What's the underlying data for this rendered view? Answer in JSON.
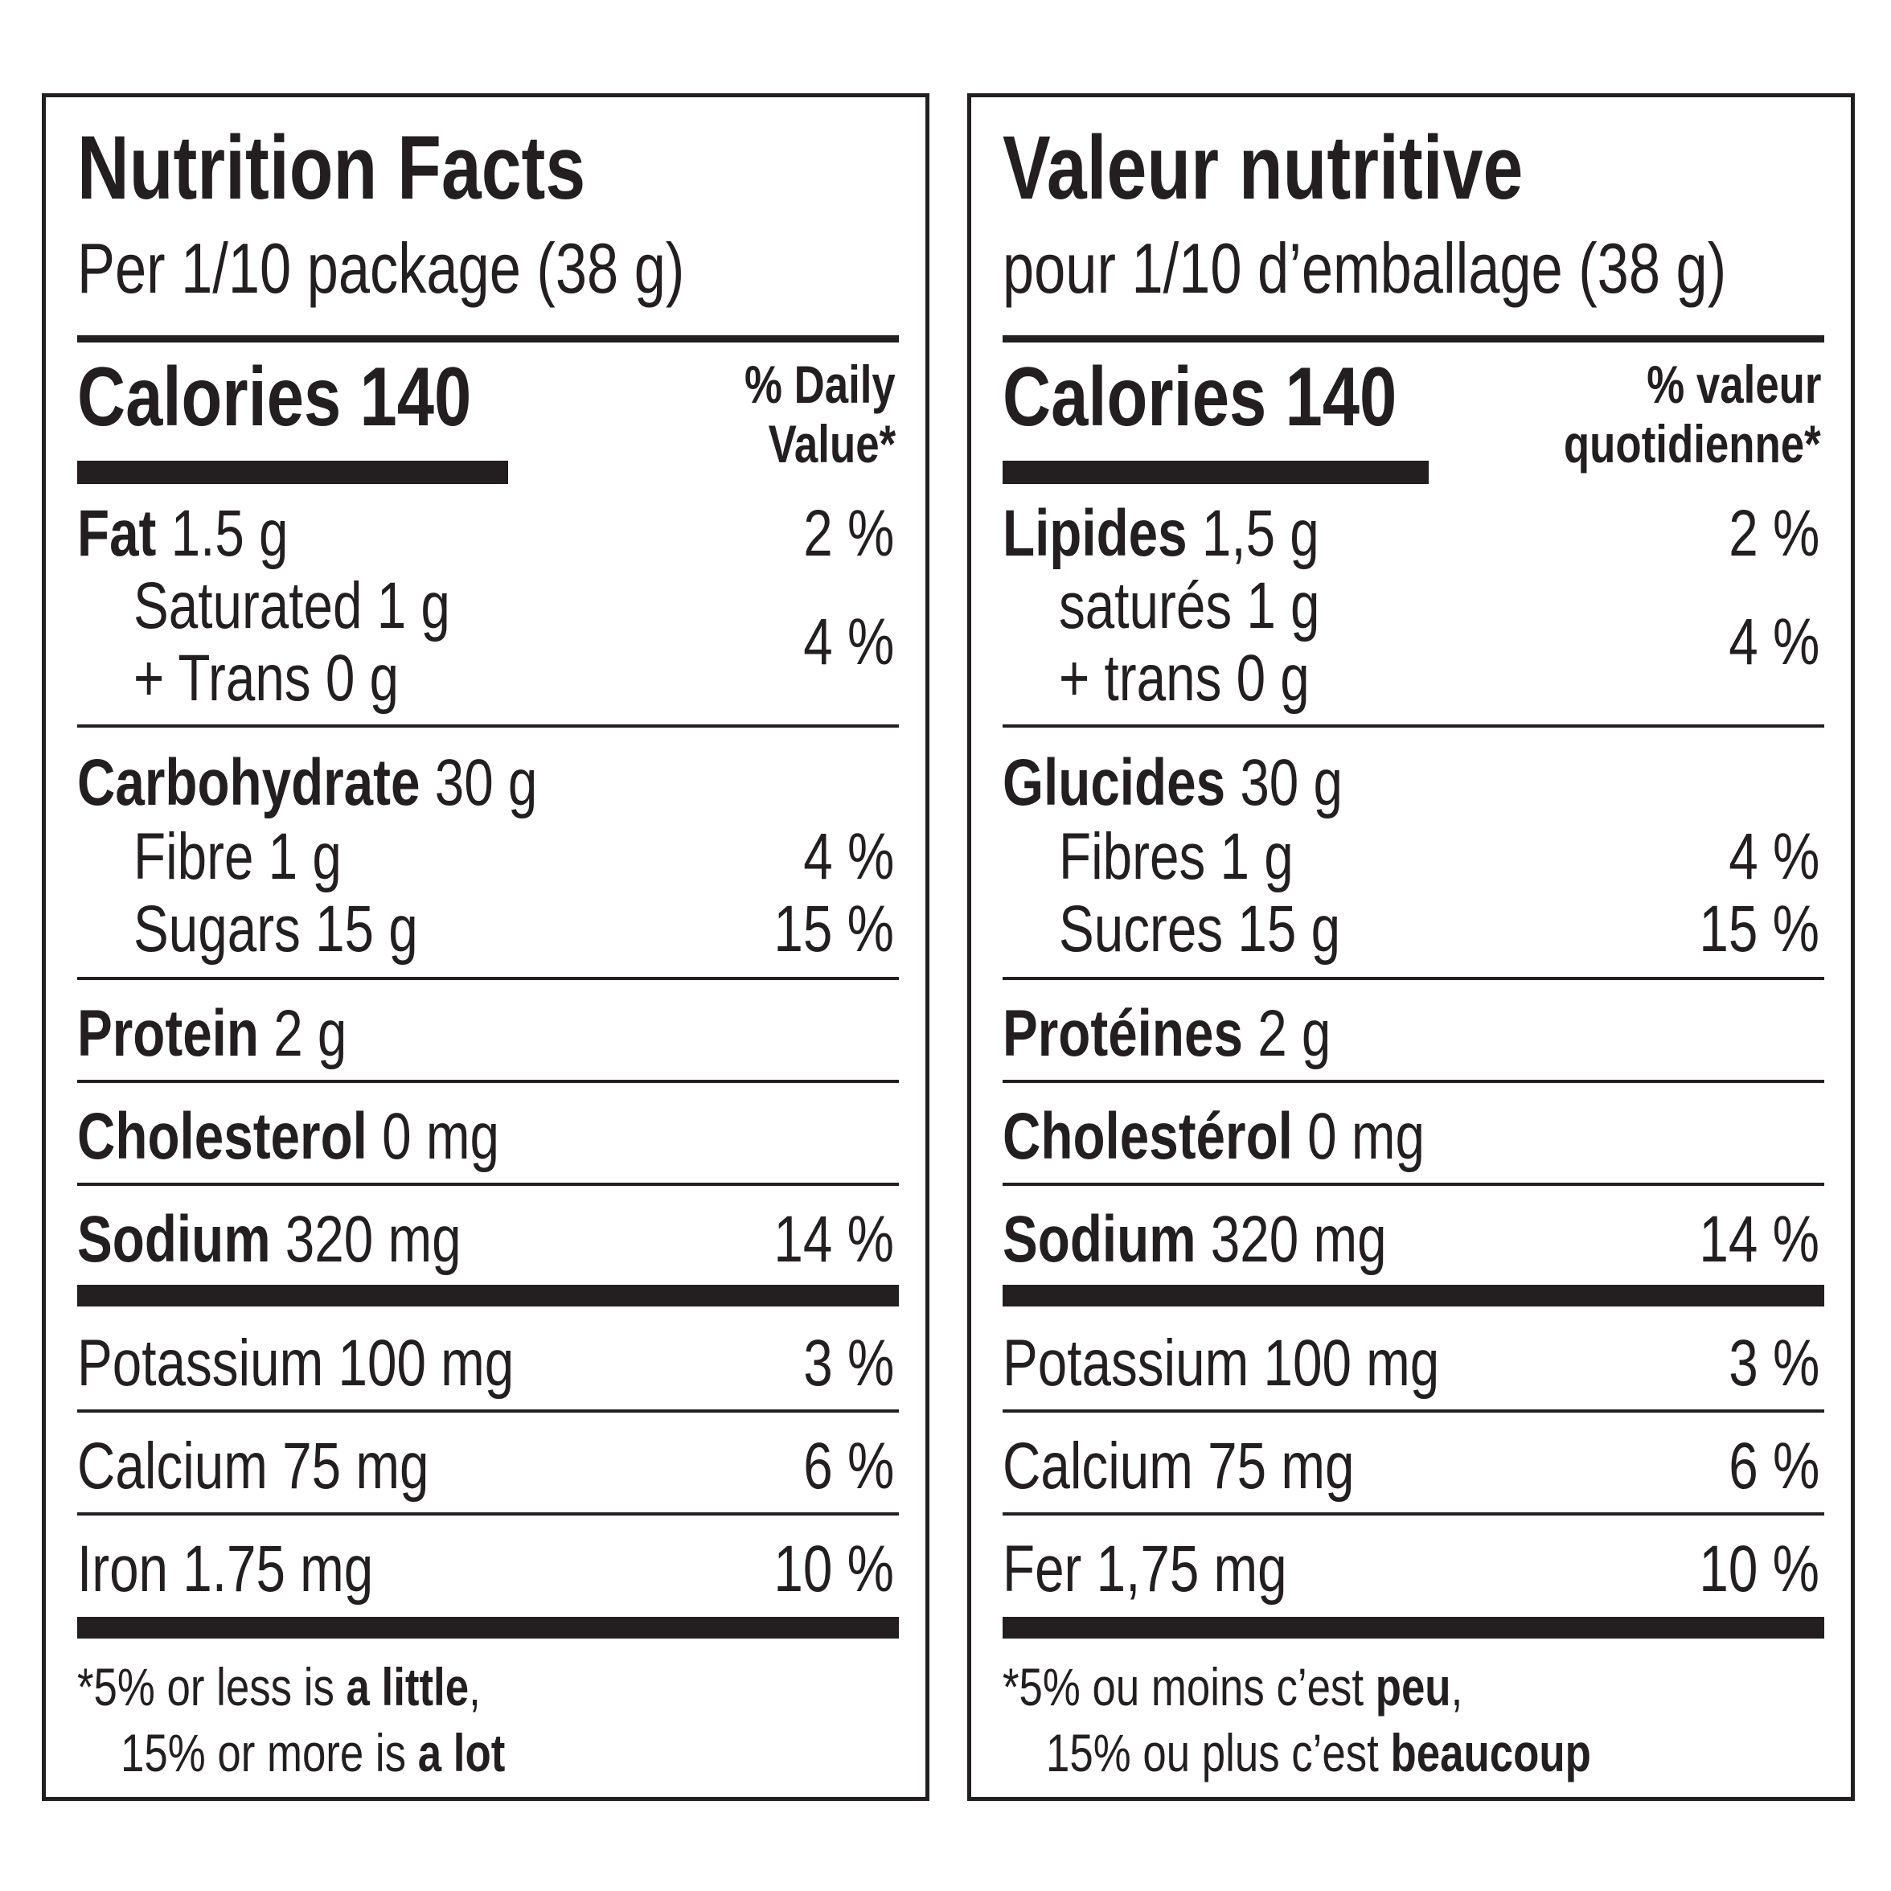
{
  "english": {
    "title": "Nutrition Facts",
    "serving": "Per 1/10 package (38 g)",
    "calories_label": "Calories 140",
    "dv_header_line1": "% Daily",
    "dv_header_line2": "Value*",
    "fat_label": "Fat",
    "fat_amount": "1.5 g",
    "fat_dv": "2 %",
    "saturated": "Saturated 1 g",
    "trans": "+ Trans 0 g",
    "sat_trans_dv": "4 %",
    "carb_label": "Carbohydrate",
    "carb_amount": "30 g",
    "fibre": "Fibre 1 g",
    "fibre_dv": "4 %",
    "sugars": "Sugars 15 g",
    "sugars_dv": "15 %",
    "protein_label": "Protein",
    "protein_amount": "2 g",
    "cholesterol_label": "Cholesterol",
    "cholesterol_amount": "0 mg",
    "sodium_label": "Sodium",
    "sodium_amount": "320 mg",
    "sodium_dv": "14 %",
    "potassium": "Potassium 100 mg",
    "potassium_dv": "3 %",
    "calcium": "Calcium 75 mg",
    "calcium_dv": "6 %",
    "iron": "Iron 1.75 mg",
    "iron_dv": "10 %",
    "footnote_l1_a": "*5% or less is ",
    "footnote_l1_b": "a little",
    "footnote_l1_c": ",",
    "footnote_l2_a": "15% or more is ",
    "footnote_l2_b": "a lot"
  },
  "french": {
    "title": "Valeur nutritive",
    "serving": "pour 1/10 d’emballage (38 g)",
    "calories_label": "Calories 140",
    "dv_header_line1": "% valeur",
    "dv_header_line2": "quotidienne*",
    "fat_label": "Lipides",
    "fat_amount": "1,5 g",
    "fat_dv": "2 %",
    "saturated": "saturés 1 g",
    "trans": "+ trans 0 g",
    "sat_trans_dv": "4 %",
    "carb_label": "Glucides",
    "carb_amount": "30 g",
    "fibre": "Fibres 1 g",
    "fibre_dv": "4 %",
    "sugars": "Sucres 15 g",
    "sugars_dv": "15 %",
    "protein_label": "Protéines",
    "protein_amount": "2 g",
    "cholesterol_label": "Cholestérol",
    "cholesterol_amount": "0 mg",
    "sodium_label": "Sodium",
    "sodium_amount": "320 mg",
    "sodium_dv": "14 %",
    "potassium": "Potassium 100 mg",
    "potassium_dv": "3 %",
    "calcium": "Calcium 75 mg",
    "calcium_dv": "6 %",
    "iron": "Fer 1,75 mg",
    "iron_dv": "10 %",
    "footnote_l1_a": "*5% ou moins c’est ",
    "footnote_l1_b": "peu",
    "footnote_l1_c": ",",
    "footnote_l2_a": "15% ou plus c’est ",
    "footnote_l2_b": "beaucoup"
  }
}
